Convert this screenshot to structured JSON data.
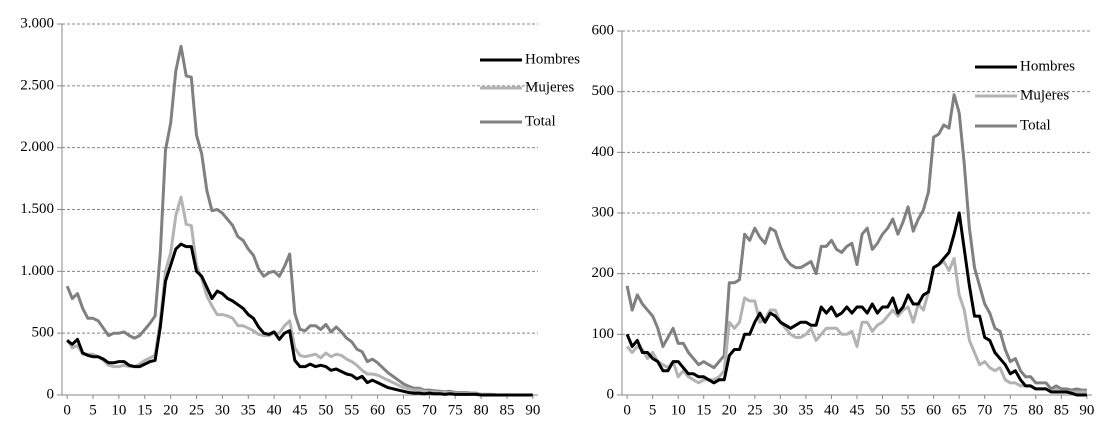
{
  "chart_data": [
    {
      "type": "line",
      "xlim": [
        -1,
        91
      ],
      "ylim": [
        0,
        3000
      ],
      "xticks": [
        0,
        5,
        10,
        15,
        20,
        25,
        30,
        35,
        40,
        45,
        50,
        55,
        60,
        65,
        70,
        75,
        80,
        85,
        90
      ],
      "yticks": [
        0,
        500,
        {
          "value": 1000,
          "label": "1.000"
        },
        {
          "value": 1500,
          "label": "1.500"
        },
        {
          "value": 2000,
          "label": "2.000"
        },
        {
          "value": 2500,
          "label": "2.500"
        },
        {
          "value": 3000,
          "label": "3.000"
        }
      ],
      "grid": true,
      "legend": "top-right",
      "x": [
        0,
        1,
        2,
        3,
        4,
        5,
        6,
        7,
        8,
        9,
        10,
        11,
        12,
        13,
        14,
        15,
        16,
        17,
        18,
        19,
        20,
        21,
        22,
        23,
        24,
        25,
        26,
        27,
        28,
        29,
        30,
        31,
        32,
        33,
        34,
        35,
        36,
        37,
        38,
        39,
        40,
        41,
        42,
        43,
        44,
        45,
        46,
        47,
        48,
        49,
        50,
        51,
        52,
        53,
        54,
        55,
        56,
        57,
        58,
        59,
        60,
        61,
        62,
        63,
        64,
        65,
        66,
        67,
        68,
        69,
        70,
        71,
        72,
        73,
        74,
        75,
        76,
        77,
        78,
        79,
        80,
        81,
        82,
        83,
        84,
        85,
        86,
        87,
        88,
        89,
        90
      ],
      "series": [
        {
          "name": "Hombres",
          "color": "#000000",
          "values": [
            440,
            410,
            450,
            340,
            320,
            310,
            310,
            290,
            260,
            260,
            270,
            270,
            240,
            230,
            230,
            250,
            270,
            280,
            550,
            920,
            1050,
            1180,
            1220,
            1200,
            1200,
            1000,
            960,
            870,
            780,
            840,
            820,
            780,
            760,
            730,
            700,
            650,
            620,
            550,
            500,
            490,
            510,
            450,
            500,
            520,
            280,
            230,
            230,
            250,
            230,
            240,
            230,
            200,
            210,
            190,
            170,
            160,
            130,
            150,
            100,
            120,
            100,
            80,
            60,
            50,
            40,
            30,
            20,
            15,
            15,
            10,
            15,
            10,
            10,
            5,
            10,
            5,
            5,
            5,
            5,
            5,
            0,
            0,
            0,
            0,
            0,
            0,
            0,
            0,
            0,
            0,
            0
          ]
        },
        {
          "name": "Mujeres",
          "color": "#b3b3b3",
          "values": [
            450,
            380,
            400,
            330,
            330,
            330,
            310,
            280,
            240,
            230,
            230,
            240,
            230,
            230,
            250,
            280,
            300,
            320,
            600,
            1000,
            1150,
            1450,
            1600,
            1380,
            1370,
            1050,
            940,
            800,
            720,
            650,
            650,
            640,
            620,
            560,
            560,
            540,
            520,
            490,
            480,
            480,
            500,
            500,
            560,
            600,
            380,
            320,
            310,
            320,
            330,
            300,
            340,
            310,
            330,
            320,
            290,
            270,
            240,
            200,
            170,
            170,
            160,
            140,
            120,
            100,
            80,
            60,
            50,
            40,
            40,
            30,
            25,
            25,
            20,
            20,
            20,
            15,
            15,
            15,
            10,
            10,
            5,
            5,
            5,
            0,
            0,
            0,
            0,
            0,
            0,
            0,
            0
          ]
        },
        {
          "name": "Total",
          "color": "#808080",
          "values": [
            880,
            780,
            820,
            700,
            620,
            620,
            600,
            540,
            480,
            500,
            500,
            510,
            480,
            460,
            480,
            530,
            580,
            640,
            1150,
            1980,
            2200,
            2620,
            2820,
            2580,
            2570,
            2100,
            1950,
            1650,
            1490,
            1500,
            1470,
            1420,
            1370,
            1280,
            1250,
            1180,
            1130,
            1020,
            960,
            990,
            1000,
            960,
            1040,
            1140,
            660,
            530,
            520,
            560,
            560,
            530,
            570,
            510,
            550,
            510,
            460,
            430,
            370,
            350,
            270,
            290,
            260,
            220,
            180,
            150,
            120,
            90,
            70,
            55,
            55,
            40,
            40,
            35,
            30,
            25,
            30,
            20,
            20,
            20,
            15,
            15,
            5,
            5,
            5,
            0,
            0,
            0,
            0,
            0,
            0,
            0,
            0
          ]
        }
      ]
    },
    {
      "type": "line",
      "xlim": [
        -1,
        91
      ],
      "ylim": [
        0,
        600
      ],
      "xticks": [
        0,
        5,
        10,
        15,
        20,
        25,
        30,
        35,
        40,
        45,
        50,
        55,
        60,
        65,
        70,
        75,
        80,
        85,
        90
      ],
      "yticks": [
        0,
        100,
        200,
        300,
        400,
        500,
        600
      ],
      "grid": true,
      "legend": "top-right",
      "x": [
        0,
        1,
        2,
        3,
        4,
        5,
        6,
        7,
        8,
        9,
        10,
        11,
        12,
        13,
        14,
        15,
        16,
        17,
        18,
        19,
        20,
        21,
        22,
        23,
        24,
        25,
        26,
        27,
        28,
        29,
        30,
        31,
        32,
        33,
        34,
        35,
        36,
        37,
        38,
        39,
        40,
        41,
        42,
        43,
        44,
        45,
        46,
        47,
        48,
        49,
        50,
        51,
        52,
        53,
        54,
        55,
        56,
        57,
        58,
        59,
        60,
        61,
        62,
        63,
        64,
        65,
        66,
        67,
        68,
        69,
        70,
        71,
        72,
        73,
        74,
        75,
        76,
        77,
        78,
        79,
        80,
        81,
        82,
        83,
        84,
        85,
        86,
        87,
        88,
        89,
        90
      ],
      "series": [
        {
          "name": "Hombres",
          "color": "#000000",
          "values": [
            100,
            80,
            90,
            70,
            70,
            60,
            55,
            40,
            40,
            55,
            55,
            45,
            35,
            35,
            30,
            30,
            25,
            20,
            25,
            25,
            65,
            75,
            75,
            100,
            100,
            120,
            135,
            120,
            135,
            130,
            120,
            115,
            110,
            115,
            120,
            120,
            115,
            115,
            145,
            135,
            145,
            130,
            135,
            145,
            135,
            145,
            145,
            135,
            150,
            135,
            145,
            145,
            160,
            135,
            145,
            165,
            150,
            150,
            165,
            170,
            210,
            215,
            225,
            235,
            265,
            300,
            240,
            180,
            130,
            130,
            95,
            90,
            70,
            60,
            50,
            35,
            40,
            25,
            15,
            15,
            10,
            10,
            10,
            5,
            5,
            5,
            5,
            3,
            0,
            0,
            0
          ]
        },
        {
          "name": "Mujeres",
          "color": "#b3b3b3",
          "values": [
            80,
            70,
            80,
            75,
            60,
            70,
            55,
            50,
            45,
            55,
            30,
            40,
            30,
            25,
            20,
            25,
            25,
            25,
            30,
            40,
            120,
            110,
            120,
            160,
            155,
            155,
            120,
            125,
            140,
            140,
            120,
            110,
            100,
            95,
            95,
            100,
            110,
            90,
            100,
            110,
            110,
            110,
            100,
            100,
            105,
            80,
            120,
            120,
            105,
            115,
            120,
            130,
            140,
            130,
            140,
            145,
            120,
            150,
            140,
            170,
            210,
            215,
            220,
            205,
            225,
            165,
            140,
            90,
            70,
            50,
            55,
            45,
            40,
            45,
            25,
            20,
            20,
            15,
            15,
            15,
            10,
            10,
            10,
            5,
            10,
            5,
            5,
            5,
            5,
            5,
            5
          ]
        },
        {
          "name": "Total",
          "color": "#808080",
          "values": [
            180,
            140,
            165,
            150,
            140,
            130,
            110,
            80,
            95,
            110,
            85,
            85,
            70,
            60,
            50,
            55,
            50,
            45,
            55,
            65,
            185,
            185,
            190,
            265,
            255,
            275,
            260,
            250,
            275,
            270,
            245,
            225,
            215,
            210,
            210,
            215,
            220,
            200,
            245,
            245,
            255,
            240,
            235,
            245,
            250,
            215,
            265,
            275,
            240,
            250,
            265,
            275,
            290,
            265,
            285,
            310,
            270,
            290,
            305,
            335,
            425,
            430,
            445,
            440,
            495,
            465,
            380,
            275,
            210,
            180,
            150,
            135,
            110,
            105,
            75,
            55,
            60,
            40,
            30,
            30,
            20,
            20,
            20,
            10,
            15,
            10,
            10,
            8,
            10,
            8,
            8
          ]
        }
      ]
    }
  ]
}
